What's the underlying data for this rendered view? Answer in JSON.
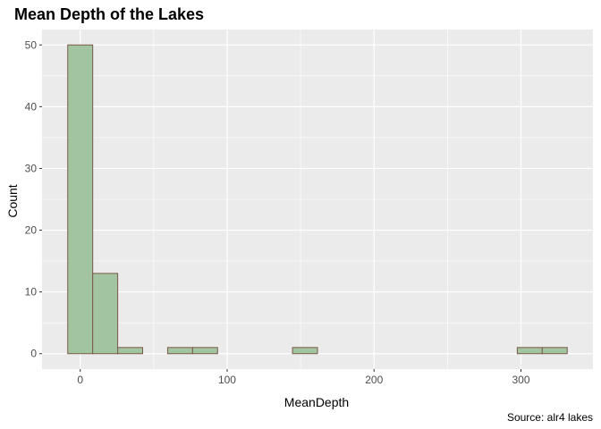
{
  "chart_data": {
    "type": "bar",
    "title": "Mean Depth of the Lakes",
    "xlabel": "MeanDepth",
    "ylabel": "Count",
    "caption": "Source: alr4 lakes",
    "bins": [
      {
        "x0": -8.5,
        "x1": 8.5,
        "count": 50
      },
      {
        "x0": 8.5,
        "x1": 25.5,
        "count": 13
      },
      {
        "x0": 25.5,
        "x1": 42.5,
        "count": 1
      },
      {
        "x0": 42.5,
        "x1": 59.5,
        "count": 0
      },
      {
        "x0": 59.5,
        "x1": 76.5,
        "count": 1
      },
      {
        "x0": 76.5,
        "x1": 93.5,
        "count": 1
      },
      {
        "x0": 93.5,
        "x1": 110.5,
        "count": 0
      },
      {
        "x0": 110.5,
        "x1": 127.5,
        "count": 0
      },
      {
        "x0": 127.5,
        "x1": 144.5,
        "count": 0
      },
      {
        "x0": 144.5,
        "x1": 161.5,
        "count": 1
      },
      {
        "x0": 161.5,
        "x1": 178.5,
        "count": 0
      },
      {
        "x0": 178.5,
        "x1": 195.5,
        "count": 0
      },
      {
        "x0": 195.5,
        "x1": 212.5,
        "count": 0
      },
      {
        "x0": 212.5,
        "x1": 229.5,
        "count": 0
      },
      {
        "x0": 229.5,
        "x1": 246.5,
        "count": 0
      },
      {
        "x0": 246.5,
        "x1": 263.5,
        "count": 0
      },
      {
        "x0": 263.5,
        "x1": 280.5,
        "count": 0
      },
      {
        "x0": 280.5,
        "x1": 297.5,
        "count": 0
      },
      {
        "x0": 297.5,
        "x1": 314.5,
        "count": 1
      },
      {
        "x0": 314.5,
        "x1": 331.5,
        "count": 1
      }
    ],
    "xticks": [
      0,
      100,
      200,
      300
    ],
    "yticks": [
      0,
      10,
      20,
      30,
      40,
      50
    ],
    "xlim": [
      -26,
      349
    ],
    "ylim": [
      -2.5,
      52.5
    ],
    "grid": true,
    "colors": {
      "panel_background": "#ebebeb",
      "grid_major": "#ffffff",
      "bar_fill": "#a3c4a1",
      "bar_outline": "#7a5a48",
      "tick_text": "#4d4d4d",
      "tick_mark": "#333333"
    }
  }
}
